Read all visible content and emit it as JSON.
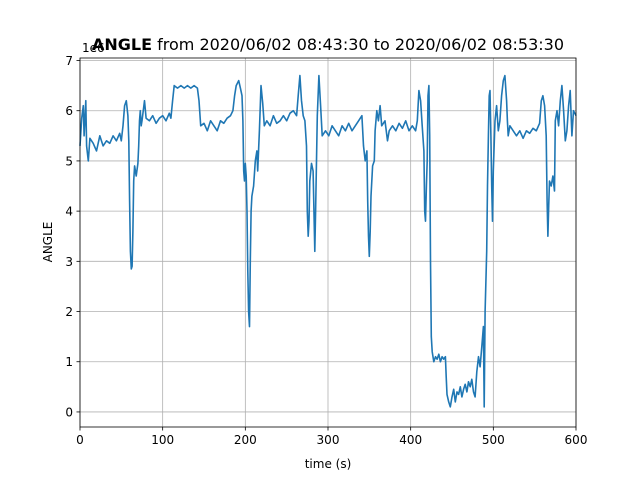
{
  "chart_data": {
    "type": "line",
    "title_bold": "ANGLE",
    "title_rest": " from 2020/06/02 08:43:30 to 2020/06/02 08:53:30",
    "xlabel": "time (s)",
    "ylabel": "ANGLE",
    "y_offset_label": "1e6",
    "xlim": [
      0,
      600
    ],
    "ylim": [
      -0.3,
      7.05
    ],
    "x_ticks": [
      0,
      100,
      200,
      300,
      400,
      500,
      600
    ],
    "y_ticks": [
      0,
      1,
      2,
      3,
      4,
      5,
      6,
      7
    ],
    "grid": true,
    "line_color": "#1f77b4",
    "series": [
      {
        "points": [
          [
            0,
            5.3
          ],
          [
            2,
            5.85
          ],
          [
            4,
            6.1
          ],
          [
            5,
            5.5
          ],
          [
            7,
            6.2
          ],
          [
            8,
            5.3
          ],
          [
            10,
            5.0
          ],
          [
            12,
            5.45
          ],
          [
            16,
            5.35
          ],
          [
            20,
            5.2
          ],
          [
            24,
            5.5
          ],
          [
            28,
            5.3
          ],
          [
            32,
            5.4
          ],
          [
            36,
            5.35
          ],
          [
            40,
            5.5
          ],
          [
            44,
            5.4
          ],
          [
            48,
            5.55
          ],
          [
            50,
            5.4
          ],
          [
            52,
            5.7
          ],
          [
            54,
            6.1
          ],
          [
            56,
            6.2
          ],
          [
            58,
            5.9
          ],
          [
            59,
            5.4
          ],
          [
            60,
            4.2
          ],
          [
            61,
            3.2
          ],
          [
            62,
            2.85
          ],
          [
            63,
            2.9
          ],
          [
            64,
            3.6
          ],
          [
            65,
            4.6
          ],
          [
            66,
            4.9
          ],
          [
            68,
            4.7
          ],
          [
            70,
            4.95
          ],
          [
            71,
            5.3
          ],
          [
            72,
            5.8
          ],
          [
            73,
            6.0
          ],
          [
            74,
            5.7
          ],
          [
            75,
            5.8
          ],
          [
            78,
            6.2
          ],
          [
            80,
            5.85
          ],
          [
            84,
            5.8
          ],
          [
            88,
            5.9
          ],
          [
            92,
            5.75
          ],
          [
            96,
            5.85
          ],
          [
            100,
            5.9
          ],
          [
            104,
            5.8
          ],
          [
            108,
            5.95
          ],
          [
            110,
            5.85
          ],
          [
            112,
            6.2
          ],
          [
            114,
            6.5
          ],
          [
            118,
            6.45
          ],
          [
            122,
            6.5
          ],
          [
            126,
            6.45
          ],
          [
            130,
            6.5
          ],
          [
            134,
            6.45
          ],
          [
            138,
            6.5
          ],
          [
            142,
            6.45
          ],
          [
            144,
            6.2
          ],
          [
            146,
            5.7
          ],
          [
            150,
            5.75
          ],
          [
            154,
            5.6
          ],
          [
            158,
            5.8
          ],
          [
            162,
            5.7
          ],
          [
            166,
            5.6
          ],
          [
            170,
            5.8
          ],
          [
            174,
            5.75
          ],
          [
            178,
            5.85
          ],
          [
            182,
            5.9
          ],
          [
            185,
            6.0
          ],
          [
            187,
            6.3
          ],
          [
            189,
            6.5
          ],
          [
            192,
            6.6
          ],
          [
            194,
            6.45
          ],
          [
            196,
            6.3
          ],
          [
            197,
            5.8
          ],
          [
            198,
            4.8
          ],
          [
            199,
            4.6
          ],
          [
            200,
            4.95
          ],
          [
            201,
            4.7
          ],
          [
            202,
            4.0
          ],
          [
            203,
            2.8
          ],
          [
            204,
            2.0
          ],
          [
            205,
            1.7
          ],
          [
            206,
            3.0
          ],
          [
            207,
            4.0
          ],
          [
            208,
            4.3
          ],
          [
            210,
            4.5
          ],
          [
            212,
            5.0
          ],
          [
            214,
            5.2
          ],
          [
            215,
            4.8
          ],
          [
            217,
            5.6
          ],
          [
            219,
            6.5
          ],
          [
            221,
            6.15
          ],
          [
            223,
            5.7
          ],
          [
            226,
            5.8
          ],
          [
            230,
            5.7
          ],
          [
            234,
            5.9
          ],
          [
            238,
            5.75
          ],
          [
            242,
            5.8
          ],
          [
            246,
            5.9
          ],
          [
            250,
            5.8
          ],
          [
            254,
            5.95
          ],
          [
            258,
            6.0
          ],
          [
            262,
            5.9
          ],
          [
            264,
            6.3
          ],
          [
            266,
            6.7
          ],
          [
            268,
            6.2
          ],
          [
            270,
            5.9
          ],
          [
            272,
            5.8
          ],
          [
            274,
            5.3
          ],
          [
            275,
            4.0
          ],
          [
            276,
            3.5
          ],
          [
            277,
            3.8
          ],
          [
            278,
            4.6
          ],
          [
            280,
            4.95
          ],
          [
            282,
            4.8
          ],
          [
            284,
            3.2
          ],
          [
            285,
            4.0
          ],
          [
            287,
            5.9
          ],
          [
            289,
            6.7
          ],
          [
            291,
            6.1
          ],
          [
            293,
            5.5
          ],
          [
            297,
            5.6
          ],
          [
            301,
            5.5
          ],
          [
            305,
            5.7
          ],
          [
            309,
            5.6
          ],
          [
            313,
            5.5
          ],
          [
            317,
            5.7
          ],
          [
            321,
            5.6
          ],
          [
            325,
            5.75
          ],
          [
            329,
            5.6
          ],
          [
            333,
            5.7
          ],
          [
            337,
            5.8
          ],
          [
            341,
            5.9
          ],
          [
            343,
            5.3
          ],
          [
            345,
            5.0
          ],
          [
            347,
            5.2
          ],
          [
            348,
            4.2
          ],
          [
            349,
            3.5
          ],
          [
            350,
            3.1
          ],
          [
            351,
            3.6
          ],
          [
            352,
            4.3
          ],
          [
            354,
            4.9
          ],
          [
            356,
            5.0
          ],
          [
            357,
            5.6
          ],
          [
            359,
            6.0
          ],
          [
            361,
            5.8
          ],
          [
            363,
            6.1
          ],
          [
            365,
            5.7
          ],
          [
            369,
            5.8
          ],
          [
            372,
            5.4
          ],
          [
            374,
            5.6
          ],
          [
            378,
            5.7
          ],
          [
            382,
            5.6
          ],
          [
            386,
            5.75
          ],
          [
            390,
            5.65
          ],
          [
            394,
            5.8
          ],
          [
            398,
            5.6
          ],
          [
            402,
            5.7
          ],
          [
            406,
            5.6
          ],
          [
            408,
            5.8
          ],
          [
            410,
            6.4
          ],
          [
            412,
            6.2
          ],
          [
            414,
            5.7
          ],
          [
            416,
            5.2
          ],
          [
            417,
            4.0
          ],
          [
            418,
            3.8
          ],
          [
            419,
            4.5
          ],
          [
            420,
            5.0
          ],
          [
            421,
            6.3
          ],
          [
            422,
            6.5
          ],
          [
            423,
            5.5
          ],
          [
            424,
            3.0
          ],
          [
            425,
            1.5
          ],
          [
            426,
            1.2
          ],
          [
            428,
            1.0
          ],
          [
            430,
            1.1
          ],
          [
            432,
            1.05
          ],
          [
            434,
            1.15
          ],
          [
            436,
            1.0
          ],
          [
            438,
            1.1
          ],
          [
            440,
            1.05
          ],
          [
            442,
            1.1
          ],
          [
            443,
            0.7
          ],
          [
            444,
            0.35
          ],
          [
            446,
            0.2
          ],
          [
            448,
            0.1
          ],
          [
            450,
            0.3
          ],
          [
            452,
            0.45
          ],
          [
            454,
            0.2
          ],
          [
            456,
            0.4
          ],
          [
            458,
            0.35
          ],
          [
            460,
            0.5
          ],
          [
            462,
            0.3
          ],
          [
            464,
            0.45
          ],
          [
            466,
            0.55
          ],
          [
            468,
            0.4
          ],
          [
            470,
            0.6
          ],
          [
            472,
            0.5
          ],
          [
            474,
            0.65
          ],
          [
            476,
            0.4
          ],
          [
            478,
            0.3
          ],
          [
            480,
            0.8
          ],
          [
            482,
            1.1
          ],
          [
            484,
            0.9
          ],
          [
            486,
            1.3
          ],
          [
            488,
            1.7
          ],
          [
            489,
            0.1
          ],
          [
            490,
            2.0
          ],
          [
            492,
            3.2
          ],
          [
            493,
            4.5
          ],
          [
            494,
            5.5
          ],
          [
            495,
            6.3
          ],
          [
            496,
            6.4
          ],
          [
            497,
            5.5
          ],
          [
            498,
            4.5
          ],
          [
            499,
            3.8
          ],
          [
            500,
            4.8
          ],
          [
            502,
            5.8
          ],
          [
            504,
            6.1
          ],
          [
            506,
            5.6
          ],
          [
            508,
            5.8
          ],
          [
            510,
            6.3
          ],
          [
            512,
            6.6
          ],
          [
            514,
            6.7
          ],
          [
            516,
            6.2
          ],
          [
            517,
            5.8
          ],
          [
            518,
            5.5
          ],
          [
            520,
            5.7
          ],
          [
            524,
            5.6
          ],
          [
            528,
            5.5
          ],
          [
            532,
            5.6
          ],
          [
            536,
            5.45
          ],
          [
            540,
            5.6
          ],
          [
            544,
            5.55
          ],
          [
            548,
            5.65
          ],
          [
            552,
            5.6
          ],
          [
            556,
            5.75
          ],
          [
            558,
            6.2
          ],
          [
            560,
            6.3
          ],
          [
            562,
            6.1
          ],
          [
            564,
            5.5
          ],
          [
            565,
            4.2
          ],
          [
            566,
            3.5
          ],
          [
            567,
            4.1
          ],
          [
            568,
            4.6
          ],
          [
            570,
            4.5
          ],
          [
            572,
            4.7
          ],
          [
            574,
            4.4
          ],
          [
            575,
            5.8
          ],
          [
            577,
            6.0
          ],
          [
            579,
            5.7
          ],
          [
            581,
            6.2
          ],
          [
            583,
            6.5
          ],
          [
            585,
            6.0
          ],
          [
            587,
            5.4
          ],
          [
            589,
            5.6
          ],
          [
            591,
            6.1
          ],
          [
            593,
            6.4
          ],
          [
            595,
            5.5
          ],
          [
            597,
            6.0
          ],
          [
            600,
            5.9
          ]
        ]
      }
    ]
  }
}
